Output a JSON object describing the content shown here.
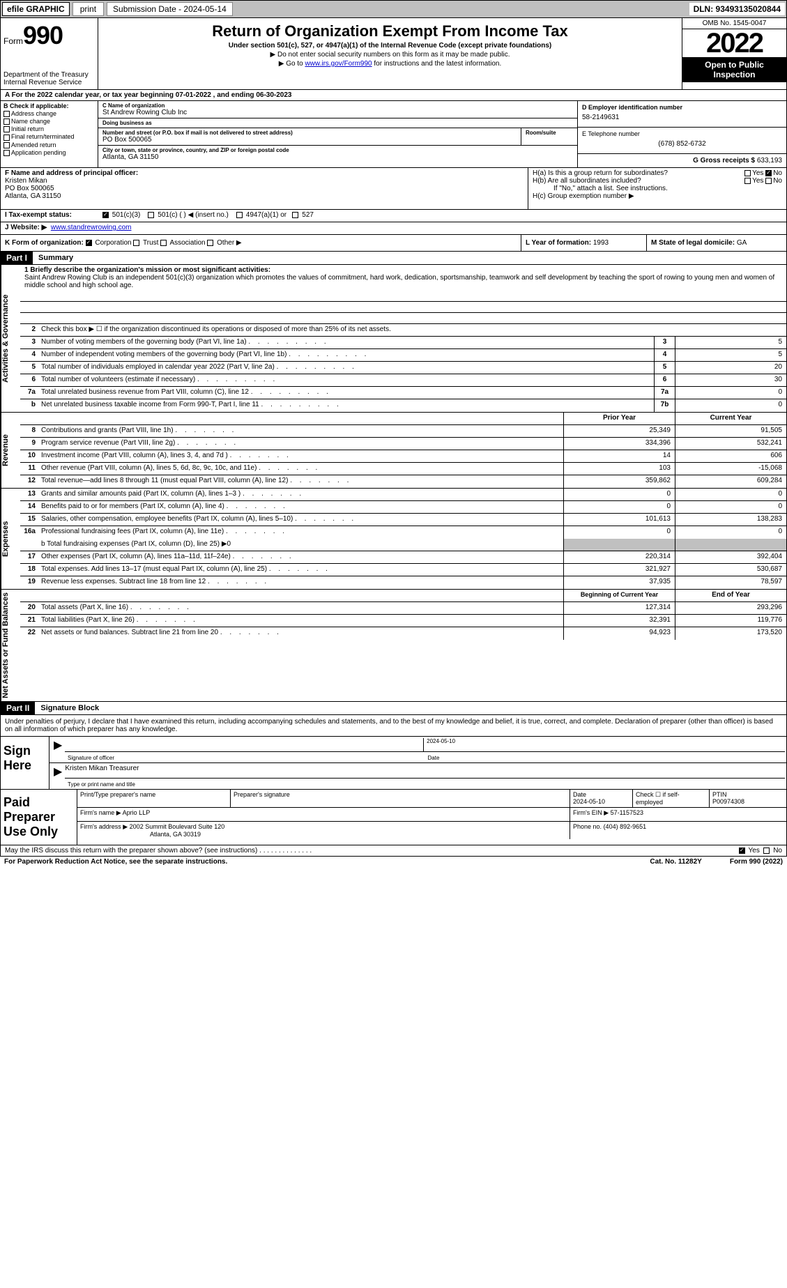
{
  "top_bar": {
    "efile": "efile GRAPHIC",
    "print": "print",
    "submission": "Submission Date - 2024-05-14",
    "dln": "DLN: 93493135020844"
  },
  "header": {
    "form_word": "Form",
    "form_num": "990",
    "dept1": "Department of the Treasury",
    "dept2": "Internal Revenue Service",
    "title": "Return of Organization Exempt From Income Tax",
    "sub": "Under section 501(c), 527, or 4947(a)(1) of the Internal Revenue Code (except private foundations)",
    "l1": "▶ Do not enter social security numbers on this form as it may be made public.",
    "l2_pre": "▶ Go to ",
    "l2_link": "www.irs.gov/Form990",
    "l2_post": " for instructions and the latest information.",
    "omb": "OMB No. 1545-0047",
    "year": "2022",
    "open": "Open to Public Inspection"
  },
  "line_a": "A For the 2022 calendar year, or tax year beginning 07-01-2022     , and ending 06-30-2023",
  "col_b": {
    "header": "B Check if applicable:",
    "items": [
      "Address change",
      "Name change",
      "Initial return",
      "Final return/terminated",
      "Amended return",
      "Application pending"
    ]
  },
  "col_c": {
    "c_label": "C Name of organization",
    "c_val": "St Andrew Rowing Club Inc",
    "dba_label": "Doing business as",
    "dba_val": "",
    "addr_label": "Number and street (or P.O. box if mail is not delivered to street address)",
    "room_label": "Room/suite",
    "addr_val": "PO Box 500065",
    "city_label": "City or town, state or province, country, and ZIP or foreign postal code",
    "city_val": "Atlanta, GA  31150"
  },
  "col_d": {
    "label": "D Employer identification number",
    "val": "58-2149631"
  },
  "col_e": {
    "label": "E Telephone number",
    "val": "(678) 852-6732"
  },
  "col_g": {
    "label": "G Gross receipts $",
    "val": "633,193"
  },
  "col_f": {
    "label": "F  Name and address of principal officer:",
    "name": "Kristen Mikan",
    "addr1": "PO Box 500065",
    "addr2": "Atlanta, GA  31150"
  },
  "col_h": {
    "ha": "H(a)  Is this a group return for subordinates?",
    "hb": "H(b)  Are all subordinates included?",
    "hb_note": "If \"No,\" attach a list. See instructions.",
    "hc": "H(c)  Group exemption number ▶",
    "yes": "Yes",
    "no": "No"
  },
  "col_i": {
    "label": "I    Tax-exempt status:",
    "opt1": "501(c)(3)",
    "opt2": "501(c) (   ) ◀ (insert no.)",
    "opt3": "4947(a)(1) or",
    "opt4": "527"
  },
  "col_j": {
    "label": "J    Website: ▶",
    "val": "www.standrewrowing.com"
  },
  "col_k": {
    "label": "K Form of organization:",
    "corp": "Corporation",
    "trust": "Trust",
    "assoc": "Association",
    "other": "Other ▶"
  },
  "col_l": {
    "label": "L Year of formation:",
    "val": "1993"
  },
  "col_m": {
    "label": "M State of legal domicile:",
    "val": "GA"
  },
  "part1": {
    "tag": "Part I",
    "title": "Summary"
  },
  "summary": {
    "l1_label": "1  Briefly describe the organization's mission or most significant activities:",
    "mission": "Saint Andrew Rowing Club is an independent 501(c)(3) organization which promotes the values of commitment, hard work, dedication, sportsmanship, teamwork and self development by teaching the sport of rowing to young men and women of middle school and high school age.",
    "l2": "Check this box ▶ ☐  if the organization discontinued its operations or disposed of more than 25% of its net assets.",
    "lines_num": [
      {
        "n": "3",
        "t": "Number of voting members of the governing body (Part VI, line 1a)",
        "box": "3",
        "v": "5"
      },
      {
        "n": "4",
        "t": "Number of independent voting members of the governing body (Part VI, line 1b)",
        "box": "4",
        "v": "5"
      },
      {
        "n": "5",
        "t": "Total number of individuals employed in calendar year 2022 (Part V, line 2a)",
        "box": "5",
        "v": "20"
      },
      {
        "n": "6",
        "t": "Total number of volunteers (estimate if necessary)",
        "box": "6",
        "v": "30"
      },
      {
        "n": "7a",
        "t": "Total unrelated business revenue from Part VIII, column (C), line 12",
        "box": "7a",
        "v": "0"
      },
      {
        "n": "b",
        "t": "Net unrelated business taxable income from Form 990-T, Part I, line 11",
        "box": "7b",
        "v": "0"
      }
    ],
    "col_prior": "Prior Year",
    "col_current": "Current Year",
    "revenue": [
      {
        "n": "8",
        "t": "Contributions and grants (Part VIII, line 1h)",
        "p": "25,349",
        "c": "91,505"
      },
      {
        "n": "9",
        "t": "Program service revenue (Part VIII, line 2g)",
        "p": "334,396",
        "c": "532,241"
      },
      {
        "n": "10",
        "t": "Investment income (Part VIII, column (A), lines 3, 4, and 7d )",
        "p": "14",
        "c": "606"
      },
      {
        "n": "11",
        "t": "Other revenue (Part VIII, column (A), lines 5, 6d, 8c, 9c, 10c, and 11e)",
        "p": "103",
        "c": "-15,068"
      },
      {
        "n": "12",
        "t": "Total revenue—add lines 8 through 11 (must equal Part VIII, column (A), line 12)",
        "p": "359,862",
        "c": "609,284"
      }
    ],
    "expenses": [
      {
        "n": "13",
        "t": "Grants and similar amounts paid (Part IX, column (A), lines 1–3 )",
        "p": "0",
        "c": "0"
      },
      {
        "n": "14",
        "t": "Benefits paid to or for members (Part IX, column (A), line 4)",
        "p": "0",
        "c": "0"
      },
      {
        "n": "15",
        "t": "Salaries, other compensation, employee benefits (Part IX, column (A), lines 5–10)",
        "p": "101,613",
        "c": "138,283"
      },
      {
        "n": "16a",
        "t": "Professional fundraising fees (Part IX, column (A), line 11e)",
        "p": "0",
        "c": "0"
      }
    ],
    "l16b": "b  Total fundraising expenses (Part IX, column (D), line 25) ▶0",
    "expenses2": [
      {
        "n": "17",
        "t": "Other expenses (Part IX, column (A), lines 11a–11d, 11f–24e)",
        "p": "220,314",
        "c": "392,404"
      },
      {
        "n": "18",
        "t": "Total expenses. Add lines 13–17 (must equal Part IX, column (A), line 25)",
        "p": "321,927",
        "c": "530,687"
      },
      {
        "n": "19",
        "t": "Revenue less expenses. Subtract line 18 from line 12",
        "p": "37,935",
        "c": "78,597"
      }
    ],
    "col_begin": "Beginning of Current Year",
    "col_end": "End of Year",
    "netassets": [
      {
        "n": "20",
        "t": "Total assets (Part X, line 16)",
        "p": "127,314",
        "c": "293,296"
      },
      {
        "n": "21",
        "t": "Total liabilities (Part X, line 26)",
        "p": "32,391",
        "c": "119,776"
      },
      {
        "n": "22",
        "t": "Net assets or fund balances. Subtract line 21 from line 20",
        "p": "94,923",
        "c": "173,520"
      }
    ]
  },
  "side_tabs": {
    "gov": "Activities & Governance",
    "rev": "Revenue",
    "exp": "Expenses",
    "net": "Net Assets or Fund Balances"
  },
  "part2": {
    "tag": "Part II",
    "title": "Signature Block"
  },
  "sig": {
    "decl": "Under penalties of perjury, I declare that I have examined this return, including accompanying schedules and statements, and to the best of my knowledge and belief, it is true, correct, and complete. Declaration of preparer (other than officer) is based on all information of which preparer has any knowledge.",
    "here": "Sign Here",
    "sig_of": "Signature of officer",
    "date": "Date",
    "date_val": "2024-05-10",
    "name_val": "Kristen Mikan  Treasurer",
    "name_lbl": "Type or print name and title"
  },
  "prep": {
    "title": "Paid Preparer Use Only",
    "h_name": "Print/Type preparer's name",
    "h_sig": "Preparer's signature",
    "h_date": "Date",
    "h_date_v": "2024-05-10",
    "h_check": "Check ☐ if self-employed",
    "h_ptin": "PTIN",
    "ptin_v": "P00974308",
    "firm_name_l": "Firm's name      ▶",
    "firm_name_v": "Aprio LLP",
    "firm_ein_l": "Firm's EIN ▶",
    "firm_ein_v": "57-1157523",
    "firm_addr_l": "Firm's address ▶",
    "firm_addr_v1": "2002 Summit Boulevard Suite 120",
    "firm_addr_v2": "Atlanta, GA  30319",
    "phone_l": "Phone no.",
    "phone_v": "(404) 892-9651"
  },
  "footer": {
    "q": "May the IRS discuss this return with the preparer shown above? (see instructions)",
    "yes": "Yes",
    "no": "No",
    "pra": "For Paperwork Reduction Act Notice, see the separate instructions.",
    "cat": "Cat. No. 11282Y",
    "form": "Form 990 (2022)"
  }
}
